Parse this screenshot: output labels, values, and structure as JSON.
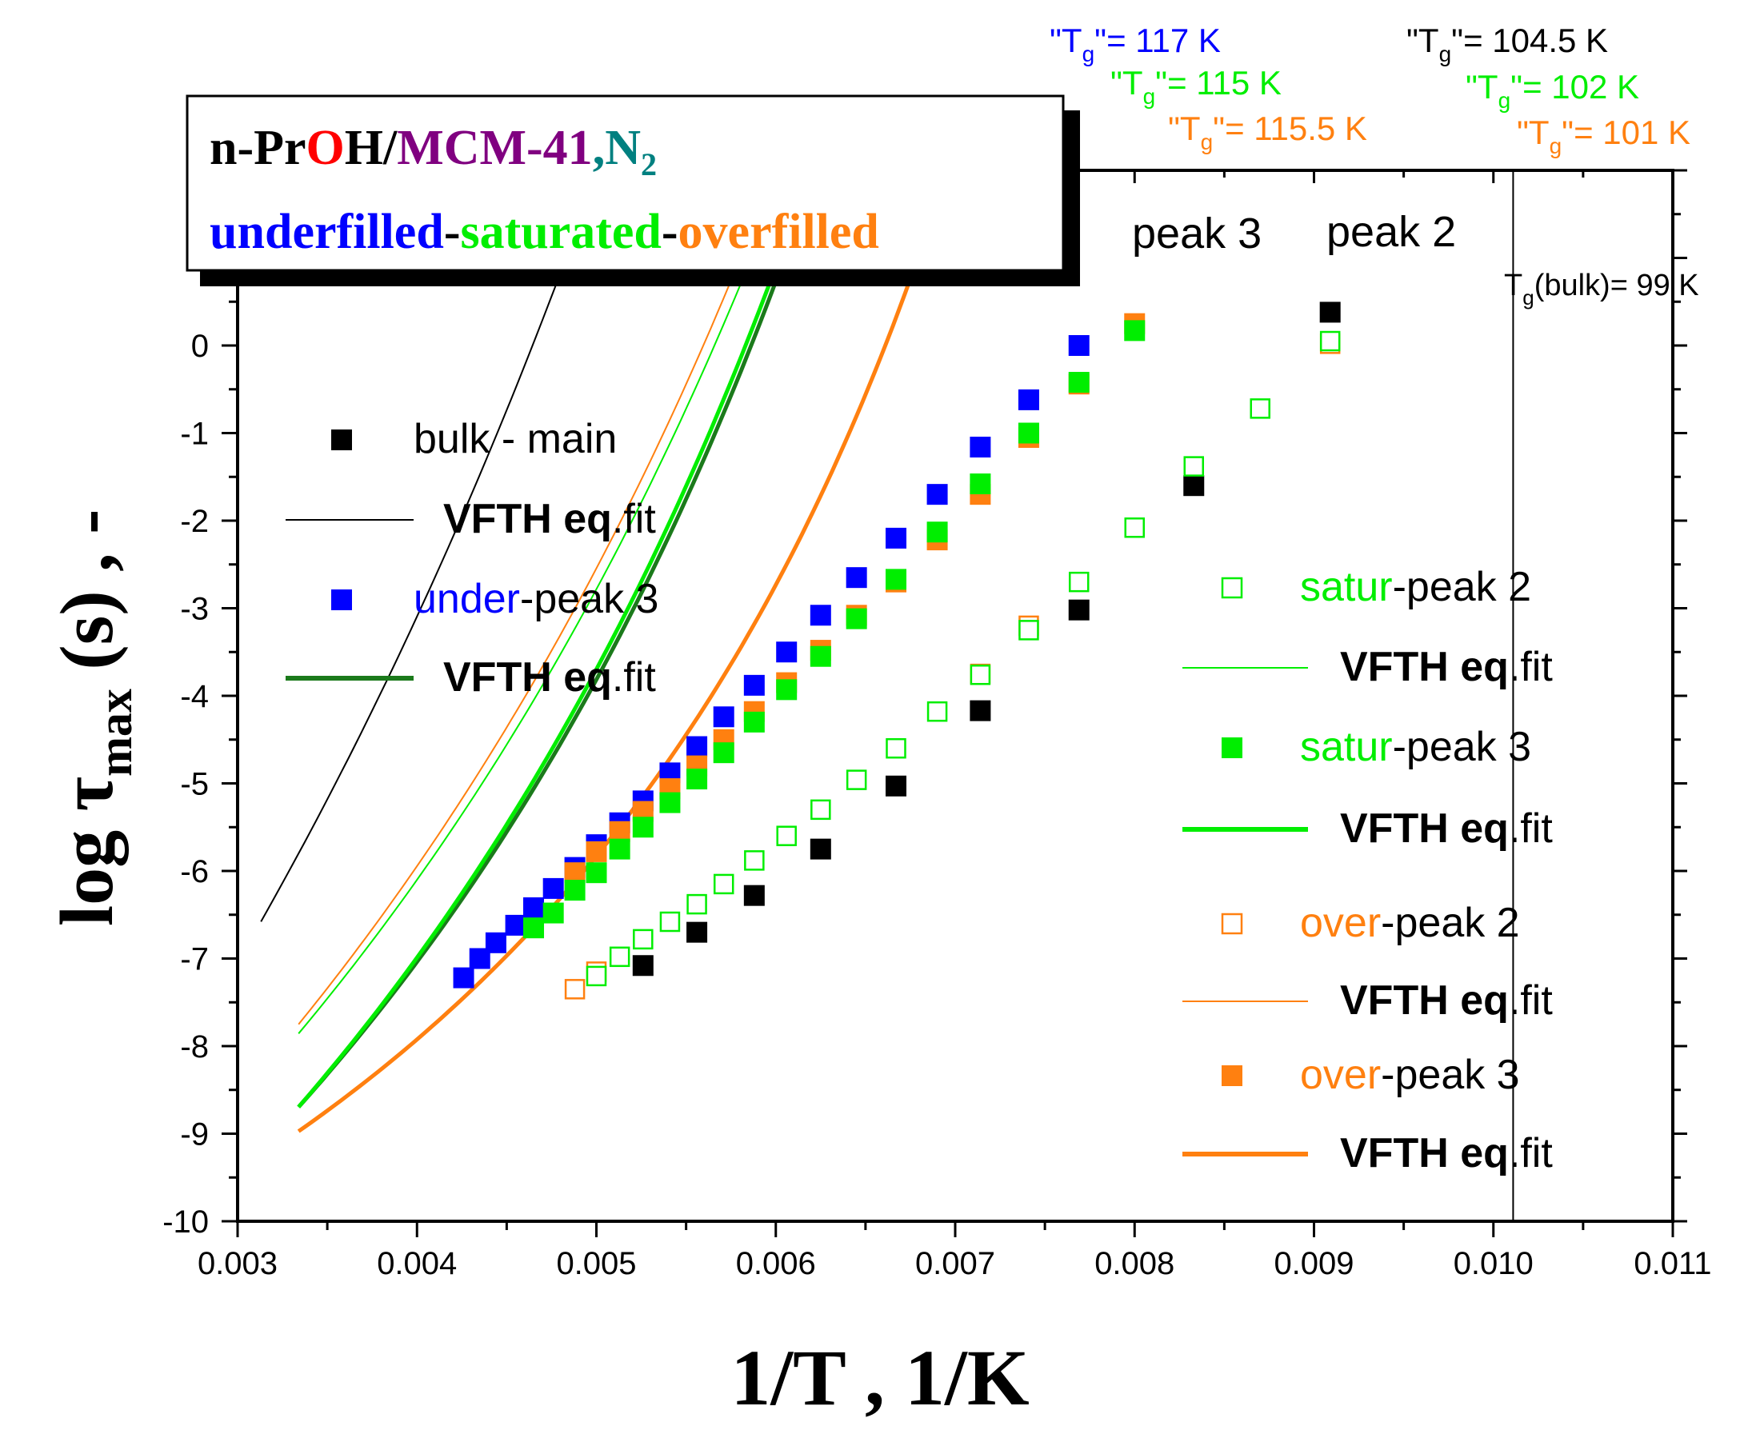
{
  "colors": {
    "bulk": "#000000",
    "under": "#0000ff",
    "under_fit": "#1b7a1b",
    "satur": "#00ee00",
    "over": "#ff8010",
    "mcm": "#800080",
    "oxygen": "#ff0000",
    "nitrogen": "#008080"
  },
  "chart_data": {
    "type": "scatter",
    "xlabel": "1/T , 1/K",
    "ylabel_prefix": "log τ",
    "ylabel_sub": "max",
    "ylabel_suffix": " (s) , -",
    "xlim": [
      0.003,
      0.011
    ],
    "ylim": [
      -10,
      2
    ],
    "x_ticks": [
      0.003,
      0.004,
      0.005,
      0.006,
      0.007,
      0.008,
      0.009,
      0.01,
      0.011
    ],
    "x_tick_labels": [
      "0.003",
      "0.004",
      "0.005",
      "0.006",
      "0.007",
      "0.008",
      "0.009",
      "0.010",
      "0.011"
    ],
    "y_ticks": [
      -10,
      -9,
      -8,
      -7,
      -6,
      -5,
      -4,
      -3,
      -2,
      -1,
      0
    ],
    "y_tick_labels": [
      "-10",
      "-9",
      "-8",
      "-7",
      "-6",
      "-5",
      "-4",
      "-3",
      "-2",
      "-1",
      "0"
    ],
    "series": [
      {
        "name": "bulk - main",
        "color": "#000000",
        "marker": "filled-square",
        "points": [
          [
            0.00526,
            -7.08
          ],
          [
            0.00556,
            -6.7
          ],
          [
            0.00588,
            -6.28
          ],
          [
            0.00625,
            -5.75
          ],
          [
            0.00667,
            -5.03
          ],
          [
            0.00714,
            -4.17
          ],
          [
            0.00769,
            -3.02
          ],
          [
            0.00833,
            -1.6
          ],
          [
            0.00909,
            0.38
          ]
        ]
      },
      {
        "name": "under-peak 3",
        "color": "#0000ff",
        "marker": "filled-square",
        "points": [
          [
            0.00426,
            -7.22
          ],
          [
            0.00435,
            -7.0
          ],
          [
            0.00444,
            -6.82
          ],
          [
            0.00455,
            -6.62
          ],
          [
            0.00465,
            -6.42
          ],
          [
            0.00476,
            -6.2
          ],
          [
            0.00488,
            -5.96
          ],
          [
            0.005,
            -5.7
          ],
          [
            0.00513,
            -5.45
          ],
          [
            0.00526,
            -5.2
          ],
          [
            0.00541,
            -4.88
          ],
          [
            0.00556,
            -4.58
          ],
          [
            0.00571,
            -4.24
          ],
          [
            0.00588,
            -3.88
          ],
          [
            0.00606,
            -3.5
          ],
          [
            0.00625,
            -3.08
          ],
          [
            0.00645,
            -2.65
          ],
          [
            0.00667,
            -2.2
          ],
          [
            0.0069,
            -1.7
          ],
          [
            0.00714,
            -1.16
          ],
          [
            0.00741,
            -0.62
          ],
          [
            0.00769,
            0.0
          ]
        ]
      },
      {
        "name": "over-peak 3",
        "color": "#ff8010",
        "marker": "filled-square",
        "points": [
          [
            0.00488,
            -6.02
          ],
          [
            0.005,
            -5.78
          ],
          [
            0.00513,
            -5.55
          ],
          [
            0.00526,
            -5.32
          ],
          [
            0.00541,
            -5.06
          ],
          [
            0.00556,
            -4.8
          ],
          [
            0.00571,
            -4.5
          ],
          [
            0.00588,
            -4.18
          ],
          [
            0.00606,
            -3.85
          ],
          [
            0.00625,
            -3.48
          ],
          [
            0.00645,
            -3.08
          ],
          [
            0.00667,
            -2.7
          ],
          [
            0.0069,
            -2.22
          ],
          [
            0.00714,
            -1.7
          ],
          [
            0.00741,
            -1.05
          ],
          [
            0.00769,
            -0.44
          ],
          [
            0.008,
            0.25
          ]
        ]
      },
      {
        "name": "satur-peak 3",
        "color": "#00ee00",
        "marker": "filled-square",
        "points": [
          [
            0.00465,
            -6.65
          ],
          [
            0.00476,
            -6.48
          ],
          [
            0.00488,
            -6.22
          ],
          [
            0.005,
            -6.02
          ],
          [
            0.00513,
            -5.75
          ],
          [
            0.00526,
            -5.5
          ],
          [
            0.00541,
            -5.22
          ],
          [
            0.00556,
            -4.95
          ],
          [
            0.00571,
            -4.65
          ],
          [
            0.00588,
            -4.3
          ],
          [
            0.00606,
            -3.93
          ],
          [
            0.00625,
            -3.55
          ],
          [
            0.00645,
            -3.12
          ],
          [
            0.00667,
            -2.67
          ],
          [
            0.0069,
            -2.13
          ],
          [
            0.00714,
            -1.58
          ],
          [
            0.00741,
            -1.0
          ],
          [
            0.00769,
            -0.42
          ],
          [
            0.008,
            0.17
          ]
        ]
      },
      {
        "name": "over-peak 2",
        "color": "#ff8010",
        "marker": "open-square",
        "points": [
          [
            0.00488,
            -7.35
          ],
          [
            0.005,
            -7.15
          ],
          [
            0.00741,
            -3.2
          ],
          [
            0.00714,
            -3.75
          ],
          [
            0.00909,
            0.02
          ]
        ]
      },
      {
        "name": "satur-peak 2",
        "color": "#00ee00",
        "marker": "open-square",
        "points": [
          [
            0.005,
            -7.2
          ],
          [
            0.00513,
            -6.98
          ],
          [
            0.00526,
            -6.78
          ],
          [
            0.00541,
            -6.58
          ],
          [
            0.00556,
            -6.38
          ],
          [
            0.00571,
            -6.15
          ],
          [
            0.00588,
            -5.88
          ],
          [
            0.00606,
            -5.6
          ],
          [
            0.00625,
            -5.3
          ],
          [
            0.00645,
            -4.96
          ],
          [
            0.00667,
            -4.6
          ],
          [
            0.0069,
            -4.18
          ],
          [
            0.00714,
            -3.76
          ],
          [
            0.00741,
            -3.25
          ],
          [
            0.00769,
            -2.7
          ],
          [
            0.008,
            -2.08
          ],
          [
            0.00833,
            -1.38
          ],
          [
            0.0087,
            -0.72
          ],
          [
            0.00909,
            0.05
          ]
        ]
      }
    ],
    "fits": [
      {
        "name": "bulk VFTH eq.fit",
        "color": "#000000",
        "width": 2,
        "A": -15.0,
        "B": 2000,
        "T0": 82.0,
        "x0": 0.00313,
        "x1": 0.0101
      },
      {
        "name": "under VFTH eq.fit",
        "color": "#1b7a1b",
        "width": 5,
        "A": -14.0,
        "B": 1100,
        "T0": 92.0,
        "x0": 0.00334,
        "x1": 0.0101
      },
      {
        "name": "satur peak 3 VFTH eq.fit",
        "color": "#00ee00",
        "width": 5,
        "A": -14.2,
        "B": 1150,
        "T0": 90.5,
        "x0": 0.00334,
        "x1": 0.0101
      },
      {
        "name": "over peak 3 VFTH eq.fit",
        "color": "#ff8010",
        "width": 5,
        "A": -12.2,
        "B": 650,
        "T0": 98.0,
        "x0": 0.00334,
        "x1": 0.0101
      },
      {
        "name": "satur peak 2 VFTH eq.fit",
        "color": "#00ee00",
        "width": 2,
        "A": -13.7,
        "B": 1250,
        "T0": 85.5,
        "x0": 0.00334,
        "x1": 0.0101
      },
      {
        "name": "over peak 2 VFTH eq.fit",
        "color": "#ff8010",
        "width": 2,
        "A": -13.8,
        "B": 1300,
        "T0": 84.5,
        "x0": 0.00334,
        "x1": 0.0101
      }
    ],
    "vline": {
      "x": 0.01011,
      "label_main": "T",
      "label_sub": "g",
      "label_rest": "(bulk)= 99 K"
    },
    "peak_labels": [
      "peak 3",
      "peak 2"
    ],
    "tg_labels": [
      {
        "pre": "\"T",
        "sub": "g",
        "post": "\"= 117 K",
        "color": "#0000ff"
      },
      {
        "pre": "\"T",
        "sub": "g",
        "post": "\"= 115 K",
        "color": "#00ee00"
      },
      {
        "pre": "\"T",
        "sub": "g",
        "post": "\"= 115.5 K",
        "color": "#ff8010"
      },
      {
        "pre": "\"T",
        "sub": "g",
        "post": "\"= 104.5 K",
        "color": "#000000"
      },
      {
        "pre": "\"T",
        "sub": "g",
        "post": "\"= 102 K",
        "color": "#00ee00"
      },
      {
        "pre": "\"T",
        "sub": "g",
        "post": "\"= 101 K",
        "color": "#ff8010"
      }
    ],
    "title_box": {
      "line1": [
        {
          "text": "n-Pr",
          "color": "#000000"
        },
        {
          "text": "O",
          "color": "#ff0000"
        },
        {
          "text": "H/",
          "color": "#000000"
        },
        {
          "text": "MCM-41",
          "color": "#800080"
        },
        {
          "text": ",N",
          "color": "#008080"
        },
        {
          "text": "2",
          "color": "#008080",
          "sub": true
        }
      ],
      "line2": [
        {
          "text": "underfilled",
          "color": "#0000ff"
        },
        {
          "text": "-",
          "color": "#000000"
        },
        {
          "text": "saturated",
          "color": "#00ee00"
        },
        {
          "text": "-",
          "color": "#000000"
        },
        {
          "text": "overfilled",
          "color": "#ff8010"
        }
      ]
    },
    "legend_left": [
      {
        "kind": "filled",
        "color": "#000000",
        "parts": [
          {
            "text": "bulk - main",
            "color": "#000000"
          }
        ]
      },
      {
        "kind": "line",
        "color": "#000000",
        "width": 2,
        "parts": [
          {
            "text": "VFTH eq",
            "color": "#000000",
            "bold": true
          },
          {
            "text": ".fit",
            "color": "#000000"
          }
        ]
      },
      {
        "kind": "filled",
        "color": "#0000ff",
        "parts": [
          {
            "text": "under",
            "color": "#0000ff"
          },
          {
            "text": "-peak 3",
            "color": "#000000"
          }
        ]
      },
      {
        "kind": "line",
        "color": "#1b7a1b",
        "width": 6,
        "parts": [
          {
            "text": "VFTH eq",
            "color": "#000000",
            "bold": true
          },
          {
            "text": ".fit",
            "color": "#000000"
          }
        ]
      }
    ],
    "legend_right": [
      {
        "kind": "open",
        "color": "#00ee00",
        "parts": [
          {
            "text": "satur",
            "color": "#00ee00"
          },
          {
            "text": "-peak 2",
            "color": "#000000"
          }
        ]
      },
      {
        "kind": "line",
        "color": "#00ee00",
        "width": 2,
        "parts": [
          {
            "text": "VFTH eq",
            "color": "#000000",
            "bold": true
          },
          {
            "text": ".fit",
            "color": "#000000"
          }
        ]
      },
      {
        "kind": "filled",
        "color": "#00ee00",
        "parts": [
          {
            "text": "satur",
            "color": "#00ee00"
          },
          {
            "text": "-peak 3",
            "color": "#000000"
          }
        ]
      },
      {
        "kind": "line",
        "color": "#00ee00",
        "width": 6,
        "parts": [
          {
            "text": "VFTH eq",
            "color": "#000000",
            "bold": true
          },
          {
            "text": ".fit",
            "color": "#000000"
          }
        ]
      },
      {
        "kind": "open",
        "color": "#ff8010",
        "parts": [
          {
            "text": "over",
            "color": "#ff8010"
          },
          {
            "text": "-peak 2",
            "color": "#000000"
          }
        ]
      },
      {
        "kind": "line",
        "color": "#ff8010",
        "width": 2,
        "parts": [
          {
            "text": "VFTH eq",
            "color": "#000000",
            "bold": true
          },
          {
            "text": ".fit",
            "color": "#000000"
          }
        ]
      },
      {
        "kind": "filled",
        "color": "#ff8010",
        "parts": [
          {
            "text": "over",
            "color": "#ff8010"
          },
          {
            "text": "-peak 3",
            "color": "#000000"
          }
        ]
      },
      {
        "kind": "line",
        "color": "#ff8010",
        "width": 6,
        "parts": [
          {
            "text": "VFTH eq",
            "color": "#000000",
            "bold": true
          },
          {
            "text": ".fit",
            "color": "#000000"
          }
        ]
      }
    ]
  }
}
